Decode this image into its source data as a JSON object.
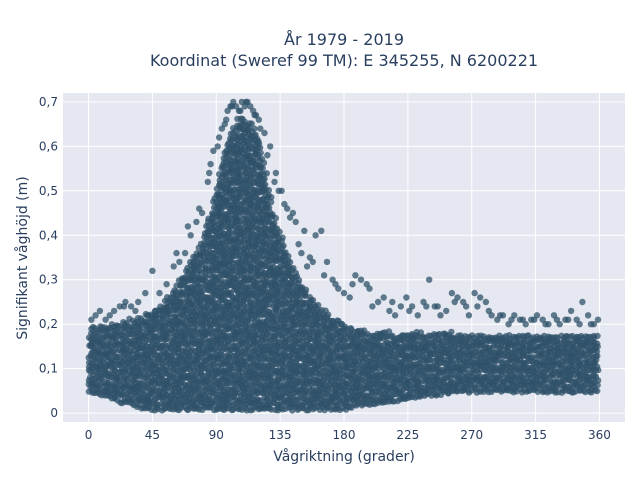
{
  "chart_data": {
    "type": "scatter",
    "title": "År 1979 - 2019",
    "subtitle": "Koordinat (Sweref 99 TM): E 345255, N 6200221",
    "xlabel": "Vågriktning (grader)",
    "ylabel": "Signifikant våghöjd (m)",
    "xlim": [
      -18,
      378
    ],
    "ylim": [
      -0.02,
      0.72
    ],
    "xticks": [
      0,
      45,
      90,
      135,
      180,
      225,
      270,
      315,
      360
    ],
    "xtick_labels": [
      "0",
      "45",
      "90",
      "135",
      "180",
      "225",
      "270",
      "315",
      "360"
    ],
    "yticks": [
      0,
      0.1,
      0.2,
      0.3,
      0.4,
      0.5,
      0.6,
      0.7
    ],
    "ytick_labels": [
      "0",
      "0,1",
      "0,2",
      "0,3",
      "0,4",
      "0,5",
      "0,6",
      "0,7"
    ],
    "grid": true,
    "marker_color": "#2f5269",
    "background_color": "#e5e8f0",
    "envelope": {
      "x": [
        0,
        10,
        20,
        30,
        40,
        50,
        60,
        70,
        80,
        90,
        95,
        100,
        105,
        110,
        115,
        120,
        125,
        130,
        140,
        150,
        160,
        170,
        180,
        190,
        200,
        220,
        240,
        260,
        280,
        300,
        320,
        340,
        360
      ],
      "y_top": [
        0.19,
        0.2,
        0.2,
        0.21,
        0.22,
        0.24,
        0.28,
        0.33,
        0.39,
        0.5,
        0.58,
        0.63,
        0.66,
        0.66,
        0.65,
        0.62,
        0.54,
        0.45,
        0.36,
        0.29,
        0.25,
        0.22,
        0.2,
        0.19,
        0.18,
        0.18,
        0.18,
        0.18,
        0.18,
        0.18,
        0.18,
        0.18,
        0.18
      ],
      "y_bottom": [
        0.05,
        0.04,
        0.03,
        0.02,
        0.01,
        0.01,
        0.01,
        0.01,
        0.01,
        0.01,
        0.01,
        0.01,
        0.01,
        0.01,
        0.01,
        0.01,
        0.01,
        0.01,
        0.01,
        0.01,
        0.01,
        0.01,
        0.01,
        0.02,
        0.02,
        0.03,
        0.04,
        0.05,
        0.05,
        0.05,
        0.05,
        0.05,
        0.05
      ]
    },
    "outliers": {
      "x": [
        2,
        5,
        8,
        12,
        15,
        18,
        22,
        26,
        30,
        35,
        40,
        45,
        50,
        55,
        60,
        64,
        68,
        72,
        76,
        80,
        84,
        86,
        88,
        92,
        96,
        98,
        100,
        102,
        104,
        106,
        108,
        110,
        112,
        114,
        116,
        118,
        120,
        124,
        128,
        132,
        136,
        140,
        144,
        148,
        150,
        152,
        156,
        160,
        164,
        168,
        172,
        176,
        180,
        184,
        188,
        192,
        196,
        200,
        204,
        208,
        212,
        216,
        220,
        224,
        228,
        232,
        236,
        240,
        244,
        248,
        252,
        256,
        260,
        264,
        268,
        272,
        276,
        280,
        284,
        288,
        292,
        296,
        300,
        304,
        308,
        312,
        316,
        320,
        324,
        328,
        332,
        336,
        340,
        344,
        348,
        352,
        356,
        359,
        62,
        70,
        78,
        85,
        91,
        94,
        97,
        101,
        107,
        111,
        117,
        121,
        126,
        131,
        134,
        138,
        142,
        146,
        154,
        158,
        166,
        174,
        186,
        198,
        214,
        226,
        238,
        246,
        258,
        266,
        274,
        282,
        290,
        298,
        306,
        314,
        322,
        330,
        338,
        346,
        354,
        25,
        33,
        42,
        52
      ],
      "y": [
        0.21,
        0.22,
        0.23,
        0.21,
        0.22,
        0.23,
        0.24,
        0.25,
        0.24,
        0.25,
        0.27,
        0.32,
        0.27,
        0.29,
        0.33,
        0.34,
        0.36,
        0.4,
        0.43,
        0.45,
        0.52,
        0.56,
        0.59,
        0.62,
        0.65,
        0.68,
        0.69,
        0.7,
        0.69,
        0.68,
        0.7,
        0.69,
        0.7,
        0.69,
        0.68,
        0.67,
        0.66,
        0.63,
        0.6,
        0.54,
        0.5,
        0.46,
        0.45,
        0.38,
        0.36,
        0.41,
        0.35,
        0.4,
        0.41,
        0.34,
        0.3,
        0.28,
        0.27,
        0.26,
        0.31,
        0.3,
        0.29,
        0.24,
        0.25,
        0.26,
        0.23,
        0.22,
        0.24,
        0.26,
        0.24,
        0.22,
        0.25,
        0.3,
        0.24,
        0.22,
        0.23,
        0.27,
        0.26,
        0.25,
        0.22,
        0.27,
        0.26,
        0.25,
        0.22,
        0.21,
        0.22,
        0.2,
        0.22,
        0.21,
        0.2,
        0.21,
        0.22,
        0.21,
        0.2,
        0.22,
        0.2,
        0.21,
        0.23,
        0.21,
        0.25,
        0.22,
        0.2,
        0.21,
        0.36,
        0.42,
        0.46,
        0.54,
        0.6,
        0.64,
        0.66,
        0.69,
        0.68,
        0.7,
        0.67,
        0.64,
        0.58,
        0.52,
        0.5,
        0.47,
        0.44,
        0.43,
        0.33,
        0.34,
        0.31,
        0.29,
        0.29,
        0.28,
        0.25,
        0.23,
        0.24,
        0.24,
        0.25,
        0.24,
        0.24,
        0.23,
        0.22,
        0.21,
        0.21,
        0.21,
        0.2,
        0.21,
        0.21,
        0.2,
        0.2,
        0.24,
        0.23,
        0.22,
        0.23
      ]
    }
  }
}
